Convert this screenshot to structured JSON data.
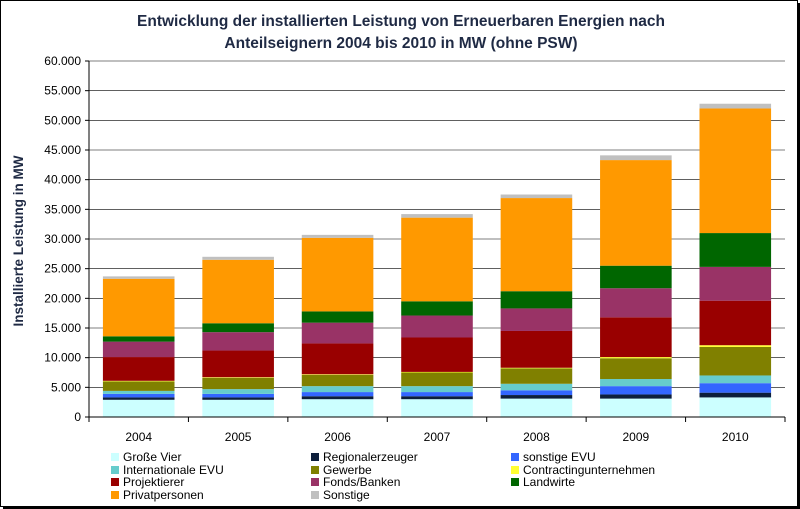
{
  "chart_data": {
    "type": "bar",
    "stacked": true,
    "title_line1": "Entwicklung der installierten Leistung von Erneuerbaren Energien nach",
    "title_line2": "Anteilseignern 2004 bis 2010 in MW (ohne PSW)",
    "ylabel": "Installierte Leistung in MW",
    "xlabel": "",
    "ylim": [
      0,
      60000
    ],
    "yticks": [
      0,
      5000,
      10000,
      15000,
      20000,
      25000,
      30000,
      35000,
      40000,
      45000,
      50000,
      55000,
      60000
    ],
    "ytick_labels": [
      "0",
      "5.000",
      "10.000",
      "15.000",
      "20.000",
      "25.000",
      "30.000",
      "35.000",
      "40.000",
      "45.000",
      "50.000",
      "55.000",
      "60.000"
    ],
    "grid": "horizontal",
    "legend_position": "bottom",
    "categories": [
      "2004",
      "2005",
      "2006",
      "2007",
      "2008",
      "2009",
      "2010"
    ],
    "series": [
      {
        "name": "Große Vier",
        "color": "#ccffff",
        "values": [
          2900,
          2900,
          3000,
          3000,
          3100,
          3100,
          3300
        ]
      },
      {
        "name": "Regionalerzeuger",
        "color": "#0d1f3c",
        "values": [
          400,
          400,
          500,
          500,
          600,
          700,
          800
        ]
      },
      {
        "name": "sonstige EVU",
        "color": "#3366ff",
        "values": [
          600,
          600,
          700,
          700,
          800,
          1400,
          1600
        ]
      },
      {
        "name": "Internationale EVU",
        "color": "#66cccc",
        "values": [
          500,
          800,
          1000,
          1000,
          1100,
          1200,
          1300
        ]
      },
      {
        "name": "Gewerbe",
        "color": "#808000",
        "values": [
          1600,
          1900,
          1900,
          2300,
          2600,
          3500,
          4800
        ]
      },
      {
        "name": "Contractingunternehmen",
        "color": "#ffff33",
        "values": [
          100,
          100,
          100,
          100,
          100,
          200,
          300
        ]
      },
      {
        "name": "Projektierer",
        "color": "#990000",
        "values": [
          4000,
          4500,
          5200,
          5800,
          6200,
          6700,
          7500
        ]
      },
      {
        "name": "Fonds/Banken",
        "color": "#993366",
        "values": [
          2600,
          3100,
          3500,
          3700,
          3800,
          4900,
          5700
        ]
      },
      {
        "name": "Landwirte",
        "color": "#006600",
        "values": [
          900,
          1500,
          1900,
          2400,
          2900,
          3800,
          5700
        ]
      },
      {
        "name": "Privatpersonen",
        "color": "#ff9900",
        "values": [
          9700,
          10700,
          12400,
          14100,
          15700,
          17800,
          21000
        ]
      },
      {
        "name": "Sonstige",
        "color": "#c0c0c0",
        "values": [
          400,
          500,
          500,
          600,
          600,
          800,
          800
        ]
      }
    ]
  }
}
